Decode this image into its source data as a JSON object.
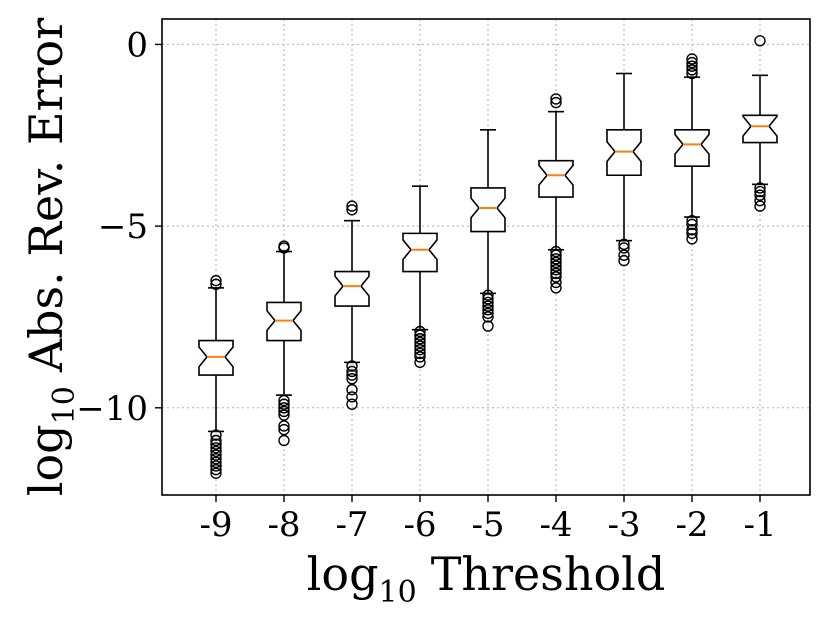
{
  "chart_data": {
    "type": "boxplot",
    "notched": true,
    "xlabel_prefix": "log",
    "xlabel_sub": "10",
    "xlabel_main": "Threshold",
    "ylabel_prefix": "log",
    "ylabel_sub": "10",
    "ylabel_main": "Abs. Rev. Error",
    "ylim": [
      -12.4,
      0.7
    ],
    "yticks": [
      0,
      -5,
      -10
    ],
    "ytick_labels": [
      "0",
      "−5",
      "−10"
    ],
    "grid": true,
    "colors": {
      "median": "#ff7f0e",
      "box": "#000000",
      "grid": "#b0b0b0"
    },
    "categories": [
      "-9",
      "-8",
      "-7",
      "-6",
      "-5",
      "-4",
      "-3",
      "-2",
      "-1"
    ],
    "boxes": [
      {
        "q1": -9.1,
        "median": -8.6,
        "q3": -8.15,
        "whisker_low": -10.65,
        "whisker_high": -6.7,
        "outliers": [
          -10.75,
          -10.9,
          -11.0,
          -11.1,
          -11.2,
          -11.3,
          -11.4,
          -11.5,
          -11.6,
          -11.7,
          -11.8,
          -6.5,
          -6.6
        ]
      },
      {
        "q1": -8.15,
        "median": -7.6,
        "q3": -7.1,
        "whisker_low": -9.65,
        "whisker_high": -5.7,
        "outliers": [
          -9.8,
          -9.9,
          -10.0,
          -10.1,
          -10.2,
          -10.5,
          -10.6,
          -10.9,
          -5.55,
          -5.6
        ]
      },
      {
        "q1": -7.2,
        "median": -6.65,
        "q3": -6.25,
        "whisker_low": -8.75,
        "whisker_high": -4.85,
        "outliers": [
          -8.85,
          -9.0,
          -9.1,
          -9.2,
          -9.5,
          -9.7,
          -9.9,
          -4.45,
          -4.55
        ]
      },
      {
        "q1": -6.25,
        "median": -5.65,
        "q3": -5.2,
        "whisker_low": -7.85,
        "whisker_high": -3.9,
        "outliers": [
          -7.9,
          -8.0,
          -8.1,
          -8.2,
          -8.3,
          -8.4,
          -8.5,
          -8.6,
          -8.75
        ]
      },
      {
        "q1": -5.15,
        "median": -4.5,
        "q3": -3.95,
        "whisker_low": -6.85,
        "whisker_high": -2.35,
        "outliers": [
          -6.9,
          -7.0,
          -7.1,
          -7.2,
          -7.3,
          -7.4,
          -7.5,
          -7.75
        ]
      },
      {
        "q1": -4.2,
        "median": -3.6,
        "q3": -3.2,
        "whisker_low": -5.65,
        "whisker_high": -1.85,
        "outliers": [
          -5.7,
          -5.8,
          -5.9,
          -6.0,
          -6.1,
          -6.2,
          -6.3,
          -6.4,
          -6.55,
          -6.7,
          -1.5,
          -1.6
        ]
      },
      {
        "q1": -3.6,
        "median": -2.95,
        "q3": -2.35,
        "whisker_low": -5.4,
        "whisker_high": -0.8,
        "outliers": [
          -5.5,
          -5.6,
          -5.8,
          -5.95
        ]
      },
      {
        "q1": -3.35,
        "median": -2.75,
        "q3": -2.35,
        "whisker_low": -4.75,
        "whisker_high": -0.9,
        "outliers": [
          -4.85,
          -4.95,
          -5.1,
          -5.2,
          -5.35,
          -0.4,
          -0.5,
          -0.6,
          -0.7,
          -0.8
        ]
      },
      {
        "q1": -2.7,
        "median": -2.25,
        "q3": -1.95,
        "whisker_low": -3.85,
        "whisker_high": -0.85,
        "outliers": [
          -3.95,
          -4.05,
          -4.15,
          -4.3,
          -4.45,
          0.1
        ]
      }
    ]
  }
}
